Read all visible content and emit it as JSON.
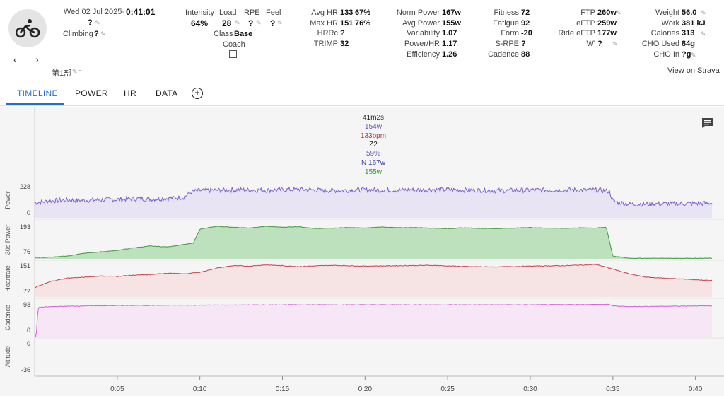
{
  "activity": {
    "date": "Wed 02 Jul 2025",
    "duration": "0:41:01",
    "title_value": "?",
    "climbing_label": "Climbing",
    "climbing_value": "?",
    "name": "第1部",
    "name_suffix": "~",
    "intensity_label": "Intensity",
    "intensity_value": "64%",
    "load_label": "Load",
    "load_value": "28",
    "rpe_label": "RPE",
    "rpe_value": "?",
    "feel_label": "Feel",
    "feel_value": "?",
    "class_label": "Class",
    "class_value": "Base",
    "coach_label": "Coach",
    "view_on_strava": "View on Strava"
  },
  "stats_col1": [
    {
      "label": "Avg HR",
      "value": "133",
      "extra": "67%"
    },
    {
      "label": "Max HR",
      "value": "151",
      "extra": "76%"
    },
    {
      "label": "HRRc",
      "value": "?",
      "extra": ""
    },
    {
      "label": "TRIMP",
      "value": "32",
      "extra": ""
    }
  ],
  "stats_col2": [
    {
      "label": "Norm Power",
      "value": "167w"
    },
    {
      "label": "Avg Power",
      "value": "155w"
    },
    {
      "label": "Variability",
      "value": "1.07"
    },
    {
      "label": "Power/HR",
      "value": "1.17"
    },
    {
      "label": "Efficiency",
      "value": "1.26"
    }
  ],
  "stats_col3": [
    {
      "label": "Fitness",
      "value": "72"
    },
    {
      "label": "Fatigue",
      "value": "92"
    },
    {
      "label": "Form",
      "value": "-20"
    },
    {
      "label": "S-RPE",
      "value": "?"
    },
    {
      "label": "Cadence",
      "value": "88"
    }
  ],
  "stats_col4": [
    {
      "label": "FTP",
      "value": "260w"
    },
    {
      "label": "eFTP",
      "value": "259w"
    },
    {
      "label": "Ride eFTP",
      "value": "177w"
    },
    {
      "label": "W'",
      "value": "?"
    }
  ],
  "stats_col5": [
    {
      "label": "Weight",
      "value": "56.0"
    },
    {
      "label": "Work",
      "value": "381 kJ"
    },
    {
      "label": "Calories",
      "value": "313"
    },
    {
      "label": "CHO Used",
      "value": "84g"
    },
    {
      "label": "CHO In",
      "value": "?g"
    }
  ],
  "tabs": [
    {
      "label": "TIMELINE",
      "active": true
    },
    {
      "label": "POWER",
      "active": false
    },
    {
      "label": "HR",
      "active": false
    },
    {
      "label": "DATA",
      "active": false
    }
  ],
  "tooltip": {
    "time": "41m2s",
    "power": "154w",
    "hr": "133bpm",
    "zone": "Z2",
    "pct": "59%",
    "np": "N 167w",
    "avg": "155w"
  },
  "colors": {
    "power": "#7b5fd3",
    "power_fill": "#e8e4f4",
    "power30": "#3e9a3e",
    "power30_fill": "#bde0bd",
    "hr": "#c8404a",
    "hr_fill": "#f6e4e4",
    "cadence": "#d659d6",
    "cadence_fill": "#f6e6f6",
    "accent": "#1f6fd1"
  },
  "chart_data": [
    {
      "type": "line",
      "name": "Power",
      "ylabel": "Power",
      "ylim": [
        0,
        228
      ],
      "y_ticks": [
        "228",
        "0"
      ],
      "x_minutes": [
        0,
        1,
        2,
        3,
        4,
        5,
        6,
        7,
        8,
        9,
        9.5,
        10,
        12,
        14,
        16,
        18,
        20,
        22,
        24,
        26,
        28,
        30,
        32,
        34,
        34.8,
        35,
        36,
        38,
        40,
        41
      ],
      "values": [
        110,
        125,
        130,
        128,
        132,
        135,
        140,
        138,
        142,
        150,
        190,
        200,
        205,
        203,
        208,
        200,
        205,
        203,
        207,
        205,
        200,
        203,
        205,
        204,
        195,
        120,
        100,
        102,
        105,
        108
      ]
    },
    {
      "type": "area",
      "name": "30s Power",
      "ylabel": "30s Power",
      "ylim": [
        76,
        193
      ],
      "y_ticks": [
        "193",
        "76"
      ],
      "x_minutes": [
        0,
        1,
        2,
        3,
        4,
        5,
        6,
        7,
        8,
        9,
        9.6,
        10,
        11,
        12,
        13,
        14,
        15,
        16,
        17,
        18,
        19,
        20,
        21,
        22,
        23,
        24,
        25,
        26,
        27,
        28,
        29,
        30,
        31,
        32,
        33,
        34,
        34.6,
        35,
        36,
        38,
        40,
        41
      ],
      "values": [
        80,
        82,
        86,
        95,
        100,
        105,
        114,
        120,
        117,
        125,
        130,
        178,
        188,
        185,
        182,
        188,
        185,
        187,
        180,
        182,
        184,
        182,
        186,
        183,
        184,
        182,
        180,
        183,
        181,
        180,
        182,
        184,
        182,
        181,
        183,
        182,
        185,
        85,
        78,
        78,
        78,
        78
      ]
    },
    {
      "type": "area",
      "name": "Heartrate",
      "ylabel": "Heartrate",
      "ylim": [
        72,
        151
      ],
      "y_ticks": [
        "151",
        "72"
      ],
      "x_minutes": [
        0,
        1,
        2,
        3,
        4,
        5,
        6,
        7,
        8,
        9,
        10,
        11,
        12,
        13,
        14,
        16,
        18,
        20,
        22,
        24,
        26,
        28,
        30,
        32,
        34,
        35,
        36,
        37,
        38,
        39,
        40,
        41
      ],
      "values": [
        95,
        110,
        118,
        120,
        123,
        122,
        125,
        126,
        130,
        128,
        132,
        142,
        148,
        147,
        150,
        146,
        149,
        147,
        148,
        149,
        146,
        145,
        147,
        148,
        151,
        140,
        128,
        120,
        118,
        116,
        114,
        112
      ]
    },
    {
      "type": "area",
      "name": "Cadence",
      "ylabel": "Cadence",
      "ylim": [
        0,
        93
      ],
      "y_ticks": [
        "93",
        "0"
      ],
      "x_minutes": [
        0,
        0.1,
        0.2,
        0.3,
        1,
        3,
        5,
        10,
        15,
        20,
        25,
        30,
        34.8,
        35,
        36,
        38,
        40,
        41
      ],
      "values": [
        0,
        0,
        78,
        80,
        82,
        84,
        85,
        86,
        87,
        87,
        87,
        87,
        88,
        84,
        82,
        83,
        84,
        84
      ]
    },
    {
      "type": "line",
      "name": "Altitude",
      "ylabel": "Altitude",
      "ylim": [
        -36,
        0
      ],
      "y_ticks": [
        "0",
        "-36"
      ],
      "x_minutes": [],
      "values": []
    }
  ],
  "x_axis": {
    "ticks": [
      "0:05",
      "0:10",
      "0:15",
      "0:20",
      "0:25",
      "0:30",
      "0:35",
      "0:40"
    ],
    "tick_minutes": [
      5,
      10,
      15,
      20,
      25,
      30,
      35,
      40
    ],
    "max_minutes": 41.0
  }
}
